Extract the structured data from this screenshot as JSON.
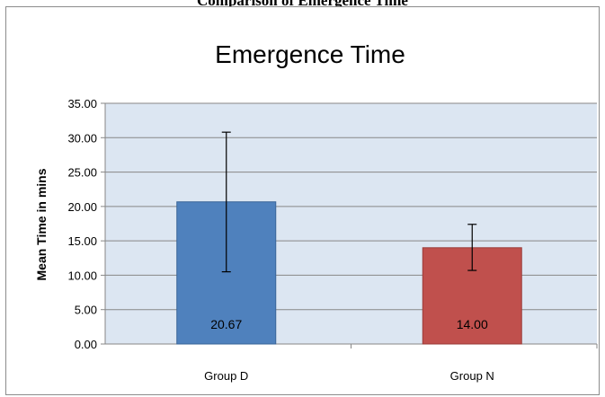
{
  "page": {
    "caption": "Comparison of Emergence Time"
  },
  "chart_data": {
    "type": "bar",
    "title": "Emergence Time",
    "xlabel": "",
    "ylabel": "Mean Time in mins",
    "categories": [
      "Group D",
      "Group N"
    ],
    "values": [
      20.67,
      14.0
    ],
    "data_labels": [
      "20.67",
      "14.00"
    ],
    "error_bars": [
      {
        "low": 10.5,
        "high": 30.8
      },
      {
        "low": 10.7,
        "high": 17.4
      }
    ],
    "colors": [
      "#4f81bd",
      "#c0504d"
    ],
    "plot_background": "#dce6f2",
    "ylim": [
      0,
      35
    ],
    "yticks": [
      0,
      5,
      10,
      15,
      20,
      25,
      30,
      35
    ],
    "ytick_labels": [
      "0.00",
      "5.00",
      "10.00",
      "15.00",
      "20.00",
      "25.00",
      "30.00",
      "35.00"
    ],
    "grid": true,
    "legend": "none"
  }
}
